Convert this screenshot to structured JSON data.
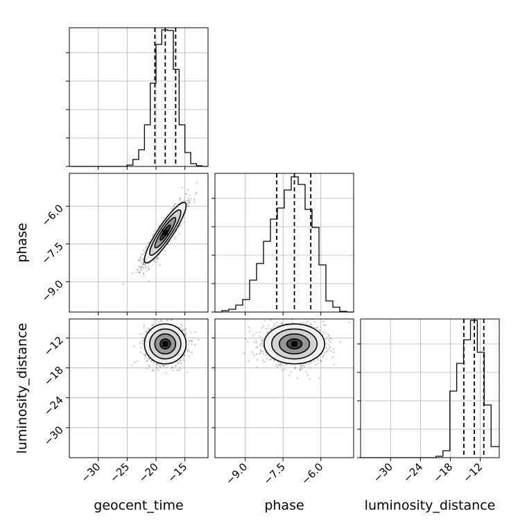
{
  "chart_data": {
    "type": "corner",
    "parameters": [
      "geocent_time",
      "phase",
      "luminosity_distance"
    ],
    "axis_labels": {
      "geocent_time": "geocent_time",
      "phase": "phase",
      "luminosity_distance": "luminosity_distance"
    },
    "ranges": {
      "geocent_time": [
        -35,
        -11
      ],
      "phase": [
        -10.2,
        -4.7
      ],
      "luminosity_distance": [
        -36,
        -8.2
      ]
    },
    "ticks": {
      "geocent_time": [
        -30,
        -25,
        -20,
        -15
      ],
      "phase": [
        -9.0,
        -7.5,
        -6.0
      ],
      "luminosity_distance": [
        -30,
        -24,
        -18,
        -12
      ]
    },
    "tick_labels": {
      "geocent_time": [
        "−30",
        "−25",
        "−20",
        "−15"
      ],
      "phase": [
        "−9.0",
        "−7.5",
        "−6.0"
      ],
      "luminosity_distance": [
        "−30",
        "−24",
        "−18",
        "−12"
      ]
    },
    "grid": true,
    "quantiles": [
      0.16,
      0.5,
      0.84
    ],
    "marginals": {
      "geocent_time": {
        "bin_edges": [
          -35,
          -34,
          -33,
          -32,
          -31,
          -30,
          -29,
          -28,
          -27,
          -26,
          -25,
          -24,
          -23,
          -22,
          -21,
          -20,
          -19,
          -18,
          -17,
          -16,
          -15,
          -14,
          -13,
          -12,
          -11
        ],
        "counts": [
          0,
          0,
          0,
          0,
          0,
          0,
          0,
          0,
          0,
          0,
          0.01,
          0.05,
          0.12,
          0.3,
          0.6,
          0.88,
          0.985,
          0.98,
          0.7,
          0.3,
          0.1,
          0.02,
          0.005,
          0
        ],
        "quantile_values": [
          -20.2,
          -18.4,
          -16.6
        ]
      },
      "phase": {
        "bin_edges": [
          -10.2,
          -9.925,
          -9.65,
          -9.375,
          -9.1,
          -8.825,
          -8.55,
          -8.275,
          -8.0,
          -7.725,
          -7.45,
          -7.175,
          -6.9,
          -6.625,
          -6.35,
          -6.075,
          -5.8,
          -5.525,
          -5.25,
          -4.975,
          -4.7
        ],
        "counts": [
          0,
          0.01,
          0.02,
          0.05,
          0.09,
          0.23,
          0.35,
          0.51,
          0.67,
          0.75,
          0.88,
          0.975,
          0.92,
          0.74,
          0.61,
          0.34,
          0.08,
          0.035,
          0.005,
          0
        ],
        "quantile_values": [
          -7.75,
          -7.05,
          -6.4
        ]
      },
      "luminosity_distance": {
        "bin_edges": [
          -36,
          -34.62,
          -33.25,
          -31.87,
          -30.49,
          -29.12,
          -27.74,
          -26.36,
          -24.99,
          -23.61,
          -22.23,
          -20.86,
          -19.48,
          -18.1,
          -16.73,
          -15.35,
          -13.97,
          -12.6,
          -11.22,
          -9.84,
          -8.2
        ],
        "counts": [
          0,
          0,
          0,
          0,
          0,
          0,
          0,
          0,
          0,
          0,
          0,
          0.01,
          0.05,
          0.48,
          0.68,
          0.85,
          0.99,
          0.76,
          0.38,
          0.08
        ],
        "quantile_values": [
          -15.3,
          -13.2,
          -11.3
        ]
      }
    },
    "joint": [
      {
        "x": "geocent_time",
        "y": "phase",
        "center": [
          -18.4,
          -7.05
        ],
        "sigma": [
          1.8,
          0.6
        ],
        "rho": 0.9,
        "n_points": 1200
      },
      {
        "x": "geocent_time",
        "y": "luminosity_distance",
        "center": [
          -18.4,
          -13.2
        ],
        "sigma": [
          1.8,
          2.0
        ],
        "rho": 0.0,
        "n_points": 1000
      },
      {
        "x": "phase",
        "y": "luminosity_distance",
        "center": [
          -7.05,
          -13.2
        ],
        "sigma": [
          0.6,
          2.0
        ],
        "rho": 0.0,
        "n_points": 1200
      }
    ],
    "contour_levels_sigma": [
      0.5,
      1.0,
      1.5,
      2.0
    ]
  }
}
